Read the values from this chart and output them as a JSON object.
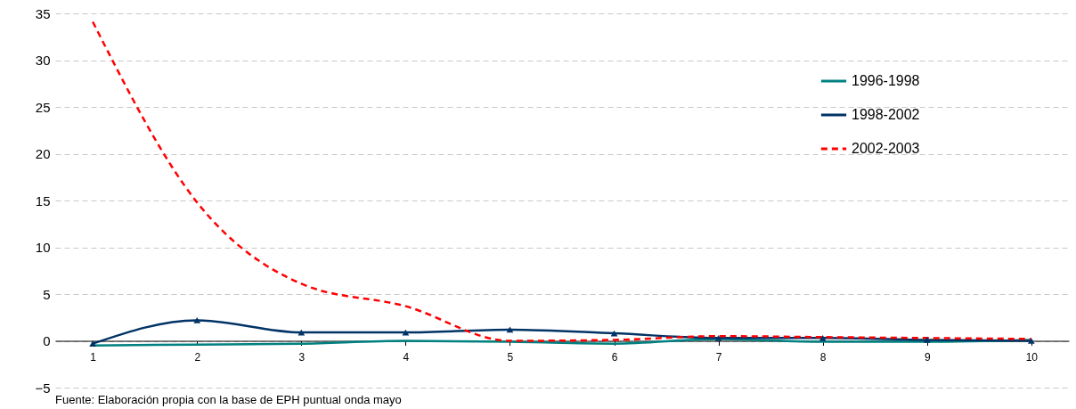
{
  "chart_data": {
    "type": "line",
    "categories": [
      "1",
      "2",
      "3",
      "4",
      "5",
      "6",
      "7",
      "8",
      "9",
      "10"
    ],
    "series": [
      {
        "name": "1996-1998",
        "color": "#008080",
        "marker": "none",
        "line_style": "solid",
        "values": [
          -0.5,
          -0.4,
          -0.3,
          0,
          -0.1,
          -0.3,
          0.2,
          -0.1,
          -0.1,
          0.1
        ]
      },
      {
        "name": "1998-2002",
        "color": "#003366",
        "marker": "triangle",
        "line_style": "solid",
        "values": [
          -0.3,
          2.2,
          0.9,
          0.9,
          1.2,
          0.8,
          0.3,
          0.3,
          0.1,
          0
        ]
      },
      {
        "name": "2002-2003",
        "color": "#ff0000",
        "marker": "none",
        "line_style": "dashed",
        "values": [
          34.1,
          14.8,
          6.1,
          3.7,
          0,
          0.1,
          0.5,
          0.4,
          0.3,
          0.2
        ]
      }
    ],
    "ylim": [
      -5,
      35
    ],
    "yticks": [
      -5,
      0,
      5,
      10,
      15,
      20,
      25,
      30,
      35
    ],
    "grid": "y",
    "legend": "top right",
    "annotations": [
      "Fuente: Elaboración propia con la base de EPH puntual onda mayo"
    ]
  }
}
